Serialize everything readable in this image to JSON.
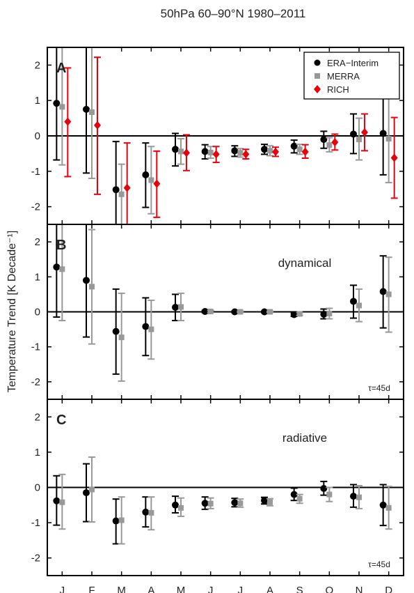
{
  "title": "50hPa 60–90°N 1980–2011",
  "ylabel": "Temperature Trend [K Decade⁻¹]",
  "months": [
    "J",
    "F",
    "M",
    "A",
    "M",
    "J",
    "J",
    "A",
    "S",
    "O",
    "N",
    "D"
  ],
  "yticks": [
    2,
    1,
    0,
    -1,
    -2
  ],
  "colors": {
    "era": "#000000",
    "merra": "#999999",
    "rich": "#e8000b"
  },
  "legend": [
    "ERA−Interim",
    "MERRA",
    "RICH"
  ],
  "chart_data": [
    {
      "type": "scatter",
      "panel": "A",
      "annotation": "",
      "tau": "",
      "ylim": [
        -2.5,
        2.5
      ],
      "series": [
        {
          "name": "ERA−Interim",
          "marker": "circle",
          "values": [
            0.92,
            0.75,
            -1.52,
            -1.1,
            -0.38,
            -0.44,
            -0.42,
            -0.38,
            -0.29,
            -0.1,
            0.05,
            0.07
          ],
          "lower": [
            -0.68,
            -1.05,
            -2.9,
            -2.02,
            -0.85,
            -0.65,
            -0.58,
            -0.52,
            -0.48,
            -0.35,
            -0.5,
            -1.1
          ],
          "upper": [
            2.5,
            2.5,
            -0.16,
            -0.2,
            0.07,
            -0.25,
            -0.28,
            -0.24,
            -0.12,
            0.13,
            0.62,
            1.25
          ]
        },
        {
          "name": "MERRA",
          "marker": "square",
          "values": [
            0.82,
            0.67,
            -1.65,
            -1.25,
            -0.44,
            -0.47,
            -0.48,
            -0.42,
            -0.38,
            -0.26,
            -0.1,
            -0.08
          ],
          "lower": [
            -0.82,
            -1.2,
            -2.5,
            -2.2,
            -0.8,
            -0.63,
            -0.6,
            -0.56,
            -0.52,
            -0.45,
            -0.68,
            -1.32
          ],
          "upper": [
            2.5,
            2.5,
            -0.8,
            -0.3,
            -0.08,
            -0.3,
            -0.36,
            -0.28,
            -0.24,
            -0.05,
            0.5,
            1.05
          ]
        },
        {
          "name": "RICH",
          "marker": "diamond",
          "values": [
            0.4,
            0.3,
            -1.47,
            -1.35,
            -0.48,
            -0.52,
            -0.52,
            -0.45,
            -0.45,
            -0.18,
            0.1,
            -0.62
          ],
          "lower": [
            -1.15,
            -1.65,
            -2.5,
            -2.3,
            -0.98,
            -0.75,
            -0.65,
            -0.58,
            -0.63,
            -0.4,
            -0.42,
            -1.76
          ],
          "upper": [
            1.92,
            2.22,
            -0.2,
            -0.43,
            0.03,
            -0.3,
            -0.38,
            -0.32,
            -0.25,
            0.05,
            0.62,
            0.52
          ]
        }
      ]
    },
    {
      "type": "scatter",
      "panel": "B",
      "annotation": "dynamical",
      "tau": "τ=45d",
      "ylim": [
        -2.5,
        2.5
      ],
      "series": [
        {
          "name": "ERA−Interim",
          "marker": "circle",
          "values": [
            1.28,
            0.9,
            -0.56,
            -0.42,
            0.13,
            0.01,
            0.0,
            0.0,
            -0.08,
            -0.07,
            0.3,
            0.58
          ],
          "lower": [
            -0.15,
            -0.72,
            -1.78,
            -1.25,
            -0.25,
            -0.02,
            -0.02,
            -0.02,
            -0.13,
            -0.2,
            -0.18,
            -0.46
          ],
          "upper": [
            2.5,
            2.5,
            0.65,
            0.4,
            0.5,
            0.04,
            0.02,
            0.02,
            -0.03,
            0.08,
            0.76,
            1.6
          ]
        },
        {
          "name": "MERRA",
          "marker": "square",
          "values": [
            1.22,
            0.72,
            -0.73,
            -0.5,
            0.14,
            0.01,
            0.0,
            0.0,
            -0.06,
            -0.05,
            0.18,
            0.5
          ],
          "lower": [
            -0.25,
            -0.92,
            -1.98,
            -1.35,
            -0.25,
            -0.02,
            -0.02,
            -0.02,
            -0.1,
            -0.2,
            -0.28,
            -0.58
          ],
          "upper": [
            2.5,
            2.35,
            0.53,
            0.33,
            0.53,
            0.04,
            0.02,
            0.02,
            -0.02,
            0.1,
            0.65,
            1.56
          ]
        }
      ]
    },
    {
      "type": "scatter",
      "panel": "C",
      "annotation": "radiative",
      "tau": "τ=45d",
      "ylim": [
        -2.5,
        2.5
      ],
      "series": [
        {
          "name": "ERA−Interim",
          "marker": "circle",
          "values": [
            -0.38,
            -0.15,
            -0.95,
            -0.7,
            -0.5,
            -0.45,
            -0.43,
            -0.37,
            -0.2,
            -0.03,
            -0.25,
            -0.5
          ],
          "lower": [
            -1.07,
            -0.97,
            -1.6,
            -1.12,
            -0.72,
            -0.62,
            -0.55,
            -0.47,
            -0.37,
            -0.22,
            -0.56,
            -1.08
          ],
          "upper": [
            0.33,
            0.67,
            -0.33,
            -0.27,
            -0.25,
            -0.27,
            -0.31,
            -0.28,
            -0.02,
            0.17,
            0.08,
            0.08
          ]
        },
        {
          "name": "MERRA",
          "marker": "square",
          "values": [
            -0.42,
            -0.06,
            -0.93,
            -0.72,
            -0.58,
            -0.46,
            -0.45,
            -0.42,
            -0.32,
            -0.2,
            -0.28,
            -0.58
          ],
          "lower": [
            -1.18,
            -0.98,
            -1.6,
            -1.2,
            -0.82,
            -0.6,
            -0.56,
            -0.52,
            -0.45,
            -0.4,
            -0.6,
            -1.18
          ],
          "upper": [
            0.37,
            0.86,
            -0.27,
            -0.27,
            -0.3,
            -0.3,
            -0.33,
            -0.32,
            -0.2,
            0.0,
            0.05,
            0.03
          ]
        }
      ]
    }
  ]
}
